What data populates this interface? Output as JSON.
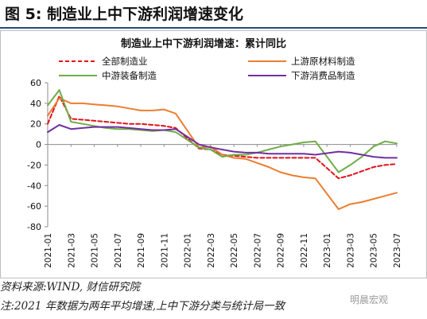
{
  "figure": {
    "heading": "图 5:  制造业上中下游利润增速变化",
    "source": "资料来源:WIND, 财信研究院",
    "note": "注:2021 年数据为两年平均增速,上中下游分类与统计局一致",
    "watermark": "明晨宏观"
  },
  "chart_data": {
    "type": "line",
    "title": "制造业上中下游利润增速：累计同比",
    "ylim": [
      -80,
      60
    ],
    "yticks": [
      "60",
      "40",
      "20",
      "0",
      "-20",
      "-40",
      "-60",
      "-80"
    ],
    "ytick_values": [
      60,
      40,
      20,
      0,
      -20,
      -40,
      -60,
      -80
    ],
    "grid": false,
    "legend": "top",
    "x": [
      "2021-01",
      "2021-02",
      "2021-03",
      "2021-04",
      "2021-05",
      "2021-06",
      "2021-07",
      "2021-08",
      "2021-09",
      "2021-10",
      "2021-11",
      "2021-12",
      "2022-01",
      "2022-02",
      "2022-03",
      "2022-04",
      "2022-05",
      "2022-06",
      "2022-07",
      "2022-08",
      "2022-09",
      "2022-10",
      "2022-11",
      "2022-12",
      "2023-01",
      "2023-02",
      "2023-03",
      "2023-04",
      "2023-05",
      "2023-06",
      "2023-07"
    ],
    "xtick_labels": [
      "2021-01",
      "2021-03",
      "2021-05",
      "2021-07",
      "2021-09",
      "2021-11",
      "2022-01",
      "2022-03",
      "2022-05",
      "2022-07",
      "2022-09",
      "2022-11",
      "2023-01",
      "2023-03",
      "2023-05",
      "2023-07"
    ],
    "series": [
      {
        "name": "全部制造业",
        "color": "#e0141b",
        "dash": "5,3",
        "values": [
          20,
          47,
          25,
          24,
          23,
          22,
          21,
          20,
          20,
          19,
          18,
          16,
          null,
          -4,
          -5,
          -10,
          -11,
          -12,
          -13,
          -13,
          -13,
          -13,
          -13,
          -13,
          null,
          -33,
          -30,
          -26,
          -22,
          -20,
          -19
        ]
      },
      {
        "name": "上游原材料制造",
        "color": "#ed7d31",
        "dash": "",
        "values": [
          28,
          45,
          40,
          40,
          39,
          38,
          37,
          35,
          33,
          33,
          34,
          30,
          null,
          -3,
          -2,
          -10,
          -13,
          -14,
          -18,
          -22,
          -27,
          -30,
          -32,
          -33,
          null,
          -63,
          -58,
          -56,
          -53,
          -50,
          -47
        ]
      },
      {
        "name": "中游装备制造",
        "color": "#70ad47",
        "dash": "",
        "values": [
          38,
          53,
          22,
          20,
          18,
          16,
          15,
          15,
          14,
          13,
          14,
          12,
          null,
          -3,
          -5,
          -12,
          -10,
          -10,
          -8,
          -5,
          -2,
          0,
          2,
          3,
          null,
          -27,
          -20,
          -12,
          -2,
          3,
          1
        ]
      },
      {
        "name": "下游消费品制造",
        "color": "#7030a0",
        "dash": "",
        "values": [
          12,
          19,
          15,
          16,
          17,
          17,
          17,
          16,
          15,
          14,
          14,
          15,
          null,
          0,
          -3,
          -5,
          -7,
          -8,
          -8,
          -9,
          -9,
          -9,
          -9,
          -10,
          null,
          -7,
          -8,
          -10,
          -12,
          -13,
          -13
        ]
      }
    ]
  }
}
